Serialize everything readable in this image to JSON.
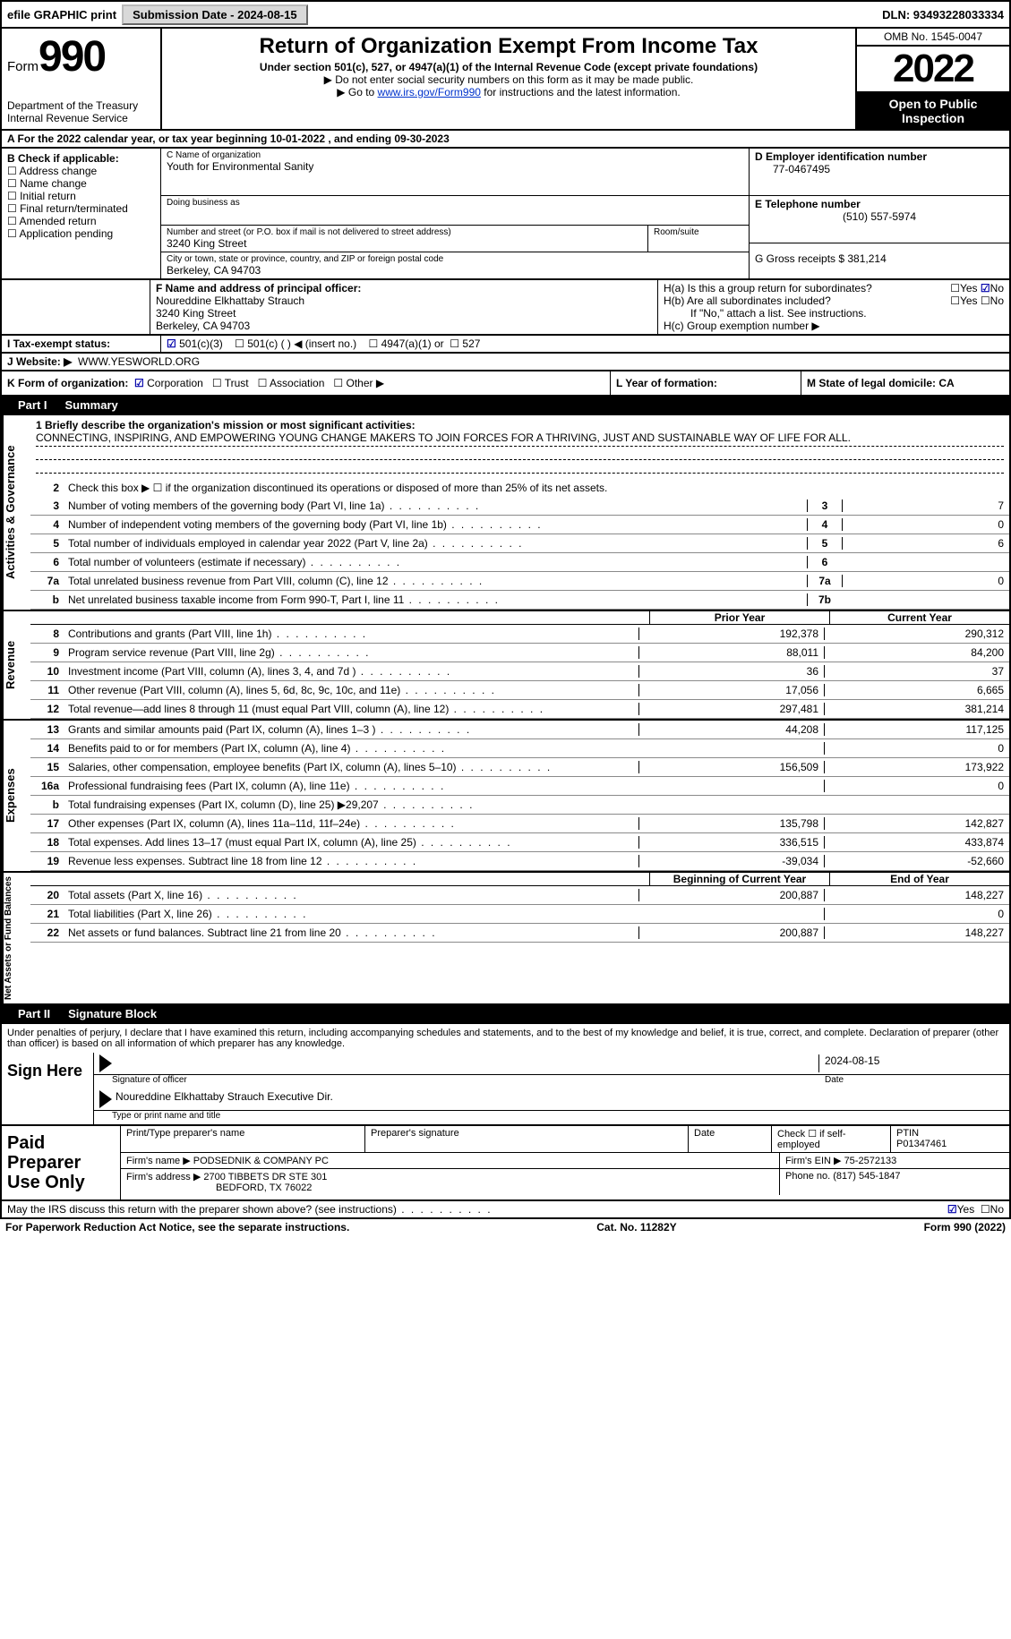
{
  "topbar": {
    "efile": "efile GRAPHIC print",
    "submission_label": "Submission Date - 2024-08-15",
    "dln_label": "DLN: 93493228033334"
  },
  "header": {
    "form_word": "Form",
    "form_num": "990",
    "dept": "Department of the Treasury",
    "irs": "Internal Revenue Service",
    "title": "Return of Organization Exempt From Income Tax",
    "subtitle": "Under section 501(c), 527, or 4947(a)(1) of the Internal Revenue Code (except private foundations)",
    "note1": "▶ Do not enter social security numbers on this form as it may be made public.",
    "note2_pre": "▶ Go to ",
    "note2_link": "www.irs.gov/Form990",
    "note2_post": " for instructions and the latest information.",
    "omb": "OMB No. 1545-0047",
    "year": "2022",
    "open": "Open to Public Inspection"
  },
  "lineA": "A For the 2022 calendar year, or tax year beginning 10-01-2022    , and ending 09-30-2023",
  "colB": {
    "title": "B Check if applicable:",
    "items": [
      "Address change",
      "Name change",
      "Initial return",
      "Final return/terminated",
      "Amended return",
      "Application pending"
    ]
  },
  "colC": {
    "name_label": "C Name of organization",
    "name": "Youth for Environmental Sanity",
    "dba_label": "Doing business as",
    "addr_label": "Number and street (or P.O. box if mail is not delivered to street address)",
    "room": "Room/suite",
    "addr": "3240 King Street",
    "city_label": "City or town, state or province, country, and ZIP or foreign postal code",
    "city": "Berkeley, CA  94703"
  },
  "colD": {
    "ein_label": "D Employer identification number",
    "ein": "77-0467495",
    "tel_label": "E Telephone number",
    "tel": "(510) 557-5974",
    "gross_label": "G Gross receipts $ 381,214"
  },
  "officer": {
    "f_label": "F Name and address of principal officer:",
    "name": "Noureddine Elkhattaby Strauch",
    "addr1": "3240 King Street",
    "addr2": "Berkeley, CA  94703",
    "ha": "H(a)  Is this a group return for subordinates?",
    "hb": "H(b)  Are all subordinates included?",
    "hb_note": "If \"No,\" attach a list. See instructions.",
    "hc": "H(c)  Group exemption number ▶",
    "yes": "Yes",
    "no": "No"
  },
  "taxstatus": {
    "i": "I   Tax-exempt status:",
    "c3": "501(c)(3)",
    "c": "501(c) (  ) ◀ (insert no.)",
    "a1": "4947(a)(1) or",
    "s527": "527"
  },
  "website": {
    "j": "J   Website: ▶",
    "val": "WWW.YESWORLD.ORG"
  },
  "kline": {
    "k": "K Form of organization:",
    "corp": "Corporation",
    "trust": "Trust",
    "assoc": "Association",
    "other": "Other ▶",
    "l": "L Year of formation:",
    "m": "M State of legal domicile: CA"
  },
  "part1": "Part I      Summary",
  "mission_label": "1   Briefly describe the organization's mission or most significant activities:",
  "mission": "CONNECTING, INSPIRING, AND EMPOWERING YOUNG CHANGE MAKERS TO JOIN FORCES FOR A THRIVING, JUST AND SUSTAINABLE WAY OF LIFE FOR ALL.",
  "line2": "Check this box ▶ ☐ if the organization discontinued its operations or disposed of more than 25% of its net assets.",
  "gov_lines": [
    {
      "n": "3",
      "d": "Number of voting members of the governing body (Part VI, line 1a)",
      "box": "3",
      "v": "7"
    },
    {
      "n": "4",
      "d": "Number of independent voting members of the governing body (Part VI, line 1b)",
      "box": "4",
      "v": "0"
    },
    {
      "n": "5",
      "d": "Total number of individuals employed in calendar year 2022 (Part V, line 2a)",
      "box": "5",
      "v": "6"
    },
    {
      "n": "6",
      "d": "Total number of volunteers (estimate if necessary)",
      "box": "6",
      "v": ""
    },
    {
      "n": "7a",
      "d": "Total unrelated business revenue from Part VIII, column (C), line 12",
      "box": "7a",
      "v": "0"
    },
    {
      "n": "b",
      "d": "Net unrelated business taxable income from Form 990-T, Part I, line 11",
      "box": "7b",
      "v": ""
    }
  ],
  "col_headers": {
    "prior": "Prior Year",
    "curr": "Current Year"
  },
  "rev_lines": [
    {
      "n": "8",
      "d": "Contributions and grants (Part VIII, line 1h)",
      "p": "192,378",
      "c": "290,312"
    },
    {
      "n": "9",
      "d": "Program service revenue (Part VIII, line 2g)",
      "p": "88,011",
      "c": "84,200"
    },
    {
      "n": "10",
      "d": "Investment income (Part VIII, column (A), lines 3, 4, and 7d )",
      "p": "36",
      "c": "37"
    },
    {
      "n": "11",
      "d": "Other revenue (Part VIII, column (A), lines 5, 6d, 8c, 9c, 10c, and 11e)",
      "p": "17,056",
      "c": "6,665"
    },
    {
      "n": "12",
      "d": "Total revenue—add lines 8 through 11 (must equal Part VIII, column (A), line 12)",
      "p": "297,481",
      "c": "381,214"
    }
  ],
  "exp_lines": [
    {
      "n": "13",
      "d": "Grants and similar amounts paid (Part IX, column (A), lines 1–3 )",
      "p": "44,208",
      "c": "117,125"
    },
    {
      "n": "14",
      "d": "Benefits paid to or for members (Part IX, column (A), line 4)",
      "p": "",
      "c": "0"
    },
    {
      "n": "15",
      "d": "Salaries, other compensation, employee benefits (Part IX, column (A), lines 5–10)",
      "p": "156,509",
      "c": "173,922"
    },
    {
      "n": "16a",
      "d": "Professional fundraising fees (Part IX, column (A), line 11e)",
      "p": "",
      "c": "0"
    },
    {
      "n": "b",
      "d": "Total fundraising expenses (Part IX, column (D), line 25) ▶29,207",
      "p": "shade",
      "c": "shade"
    },
    {
      "n": "17",
      "d": "Other expenses (Part IX, column (A), lines 11a–11d, 11f–24e)",
      "p": "135,798",
      "c": "142,827"
    },
    {
      "n": "18",
      "d": "Total expenses. Add lines 13–17 (must equal Part IX, column (A), line 25)",
      "p": "336,515",
      "c": "433,874"
    },
    {
      "n": "19",
      "d": "Revenue less expenses. Subtract line 18 from line 12",
      "p": "-39,034",
      "c": "-52,660"
    }
  ],
  "na_headers": {
    "beg": "Beginning of Current Year",
    "end": "End of Year"
  },
  "na_lines": [
    {
      "n": "20",
      "d": "Total assets (Part X, line 16)",
      "p": "200,887",
      "c": "148,227"
    },
    {
      "n": "21",
      "d": "Total liabilities (Part X, line 26)",
      "p": "",
      "c": "0"
    },
    {
      "n": "22",
      "d": "Net assets or fund balances. Subtract line 21 from line 20",
      "p": "200,887",
      "c": "148,227"
    }
  ],
  "part2": "Part II     Signature Block",
  "sig_decl": "Under penalties of perjury, I declare that I have examined this return, including accompanying schedules and statements, and to the best of my knowledge and belief, it is true, correct, and complete. Declaration of preparer (other than officer) is based on all information of which preparer has any knowledge.",
  "sign_here": "Sign Here",
  "sig_officer": "Signature of officer",
  "sig_date": "2024-08-15",
  "sig_date_lbl": "Date",
  "sig_name": "Noureddine Elkhattaby Strauch  Executive Dir.",
  "sig_name_lbl": "Type or print name and title",
  "paid": "Paid Preparer Use Only",
  "prep": {
    "h1": "Print/Type preparer's name",
    "h2": "Preparer's signature",
    "h3": "Date",
    "h4": "Check ☐ if self-employed",
    "h5": "PTIN",
    "ptin": "P01347461",
    "firm_lbl": "Firm's name    ▶",
    "firm": "PODSEDNIK & COMPANY PC",
    "ein_lbl": "Firm's EIN ▶",
    "ein": "75-2572133",
    "addr_lbl": "Firm's address ▶",
    "addr1": "2700 TIBBETS DR STE 301",
    "addr2": "BEDFORD, TX  76022",
    "phone_lbl": "Phone no.",
    "phone": "(817) 545-1847"
  },
  "discuss": "May the IRS discuss this return with the preparer shown above? (see instructions)",
  "footer": {
    "pra": "For Paperwork Reduction Act Notice, see the separate instructions.",
    "cat": "Cat. No. 11282Y",
    "form": "Form 990 (2022)"
  }
}
